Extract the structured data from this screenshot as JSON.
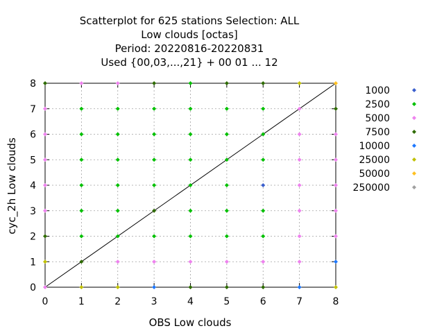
{
  "chart_data": {
    "type": "scatter",
    "title_lines": [
      "Scatterplot for  625 stations Selection: ALL",
      "Low clouds [octas]",
      "Period: 20220816-20220831",
      "Used {00,03,...,21} + 00 01 ... 12"
    ],
    "xlabel": "OBS Low clouds",
    "ylabel": "cyc_2h Low clouds",
    "xlim": [
      0,
      8
    ],
    "ylim": [
      0,
      8
    ],
    "xticks": [
      "0",
      "1",
      "2",
      "3",
      "4",
      "5",
      "6",
      "7",
      "8"
    ],
    "yticks": [
      "0",
      "1",
      "2",
      "3",
      "4",
      "5",
      "6",
      "7",
      "8"
    ],
    "grid": true,
    "diagonal_line": true,
    "legend_position": "right",
    "legend": [
      {
        "label": "1000",
        "color": "#3a5fcd"
      },
      {
        "label": "2500",
        "color": "#00c000"
      },
      {
        "label": "5000",
        "color": "#ee82ee"
      },
      {
        "label": "7500",
        "color": "#2e6b00"
      },
      {
        "label": "10000",
        "color": "#1e78ff"
      },
      {
        "label": "25000",
        "color": "#c0c000"
      },
      {
        "label": "50000",
        "color": "#ffc020"
      },
      {
        "label": "250000",
        "color": "#a0a0a0"
      }
    ],
    "points": [
      {
        "x": 0,
        "y": 8,
        "c": "#2e6b00"
      },
      {
        "x": 1,
        "y": 8,
        "c": "#ee82ee"
      },
      {
        "x": 2,
        "y": 8,
        "c": "#ee82ee"
      },
      {
        "x": 3,
        "y": 8,
        "c": "#2e6b00"
      },
      {
        "x": 4,
        "y": 8,
        "c": "#00c000"
      },
      {
        "x": 5,
        "y": 8,
        "c": "#2e6b00"
      },
      {
        "x": 6,
        "y": 8,
        "c": "#2e6b00"
      },
      {
        "x": 7,
        "y": 8,
        "c": "#c0c000"
      },
      {
        "x": 8,
        "y": 8,
        "c": "#ffc020"
      },
      {
        "x": 0,
        "y": 7,
        "c": "#ee82ee"
      },
      {
        "x": 1,
        "y": 7,
        "c": "#00c000"
      },
      {
        "x": 2,
        "y": 7,
        "c": "#00c000"
      },
      {
        "x": 3,
        "y": 7,
        "c": "#00c000"
      },
      {
        "x": 4,
        "y": 7,
        "c": "#00c000"
      },
      {
        "x": 5,
        "y": 7,
        "c": "#00c000"
      },
      {
        "x": 6,
        "y": 7,
        "c": "#00c000"
      },
      {
        "x": 7,
        "y": 7,
        "c": "#ee82ee"
      },
      {
        "x": 8,
        "y": 7,
        "c": "#2e6b00"
      },
      {
        "x": 0,
        "y": 6,
        "c": "#ee82ee"
      },
      {
        "x": 1,
        "y": 6,
        "c": "#00c000"
      },
      {
        "x": 2,
        "y": 6,
        "c": "#00c000"
      },
      {
        "x": 3,
        "y": 6,
        "c": "#00c000"
      },
      {
        "x": 4,
        "y": 6,
        "c": "#00c000"
      },
      {
        "x": 5,
        "y": 6,
        "c": "#00c000"
      },
      {
        "x": 6,
        "y": 6,
        "c": "#00c000"
      },
      {
        "x": 7,
        "y": 6,
        "c": "#ee82ee"
      },
      {
        "x": 8,
        "y": 6,
        "c": "#ee82ee"
      },
      {
        "x": 0,
        "y": 5,
        "c": "#ee82ee"
      },
      {
        "x": 1,
        "y": 5,
        "c": "#00c000"
      },
      {
        "x": 2,
        "y": 5,
        "c": "#00c000"
      },
      {
        "x": 3,
        "y": 5,
        "c": "#00c000"
      },
      {
        "x": 4,
        "y": 5,
        "c": "#00c000"
      },
      {
        "x": 5,
        "y": 5,
        "c": "#00c000"
      },
      {
        "x": 6,
        "y": 5,
        "c": "#00c000"
      },
      {
        "x": 7,
        "y": 5,
        "c": "#ee82ee"
      },
      {
        "x": 8,
        "y": 5,
        "c": "#ee82ee"
      },
      {
        "x": 0,
        "y": 4,
        "c": "#ee82ee"
      },
      {
        "x": 1,
        "y": 4,
        "c": "#00c000"
      },
      {
        "x": 2,
        "y": 4,
        "c": "#00c000"
      },
      {
        "x": 3,
        "y": 4,
        "c": "#00c000"
      },
      {
        "x": 4,
        "y": 4,
        "c": "#00c000"
      },
      {
        "x": 5,
        "y": 4,
        "c": "#00c000"
      },
      {
        "x": 6,
        "y": 4,
        "c": "#3a5fcd"
      },
      {
        "x": 7,
        "y": 4,
        "c": "#ee82ee"
      },
      {
        "x": 8,
        "y": 4,
        "c": "#ee82ee"
      },
      {
        "x": 0,
        "y": 3,
        "c": "#ee82ee"
      },
      {
        "x": 1,
        "y": 3,
        "c": "#00c000"
      },
      {
        "x": 2,
        "y": 3,
        "c": "#00c000"
      },
      {
        "x": 3,
        "y": 3,
        "c": "#2e6b00"
      },
      {
        "x": 4,
        "y": 3,
        "c": "#00c000"
      },
      {
        "x": 5,
        "y": 3,
        "c": "#00c000"
      },
      {
        "x": 6,
        "y": 3,
        "c": "#00c000"
      },
      {
        "x": 7,
        "y": 3,
        "c": "#ee82ee"
      },
      {
        "x": 8,
        "y": 3,
        "c": "#ee82ee"
      },
      {
        "x": 0,
        "y": 2,
        "c": "#2e6b00"
      },
      {
        "x": 1,
        "y": 2,
        "c": "#00c000"
      },
      {
        "x": 2,
        "y": 2,
        "c": "#00c000"
      },
      {
        "x": 3,
        "y": 2,
        "c": "#00c000"
      },
      {
        "x": 4,
        "y": 2,
        "c": "#00c000"
      },
      {
        "x": 5,
        "y": 2,
        "c": "#00c000"
      },
      {
        "x": 6,
        "y": 2,
        "c": "#00c000"
      },
      {
        "x": 7,
        "y": 2,
        "c": "#ee82ee"
      },
      {
        "x": 8,
        "y": 2,
        "c": "#ee82ee"
      },
      {
        "x": 0,
        "y": 1,
        "c": "#c0c000"
      },
      {
        "x": 1,
        "y": 1,
        "c": "#2e6b00"
      },
      {
        "x": 2,
        "y": 1,
        "c": "#ee82ee"
      },
      {
        "x": 3,
        "y": 1,
        "c": "#ee82ee"
      },
      {
        "x": 4,
        "y": 1,
        "c": "#ee82ee"
      },
      {
        "x": 5,
        "y": 1,
        "c": "#ee82ee"
      },
      {
        "x": 6,
        "y": 1,
        "c": "#ee82ee"
      },
      {
        "x": 7,
        "y": 1,
        "c": "#ee82ee"
      },
      {
        "x": 8,
        "y": 1,
        "c": "#1e78ff"
      },
      {
        "x": 0,
        "y": 0,
        "c": "#ee82ee"
      },
      {
        "x": 1,
        "y": 0,
        "c": "#c0c000"
      },
      {
        "x": 2,
        "y": 0,
        "c": "#c0c000"
      },
      {
        "x": 3,
        "y": 0,
        "c": "#1e78ff"
      },
      {
        "x": 4,
        "y": 0,
        "c": "#2e6b00"
      },
      {
        "x": 5,
        "y": 0,
        "c": "#2e6b00"
      },
      {
        "x": 6,
        "y": 0,
        "c": "#2e6b00"
      },
      {
        "x": 7,
        "y": 0,
        "c": "#1e78ff"
      },
      {
        "x": 8,
        "y": 0,
        "c": "#c0c000"
      }
    ]
  }
}
